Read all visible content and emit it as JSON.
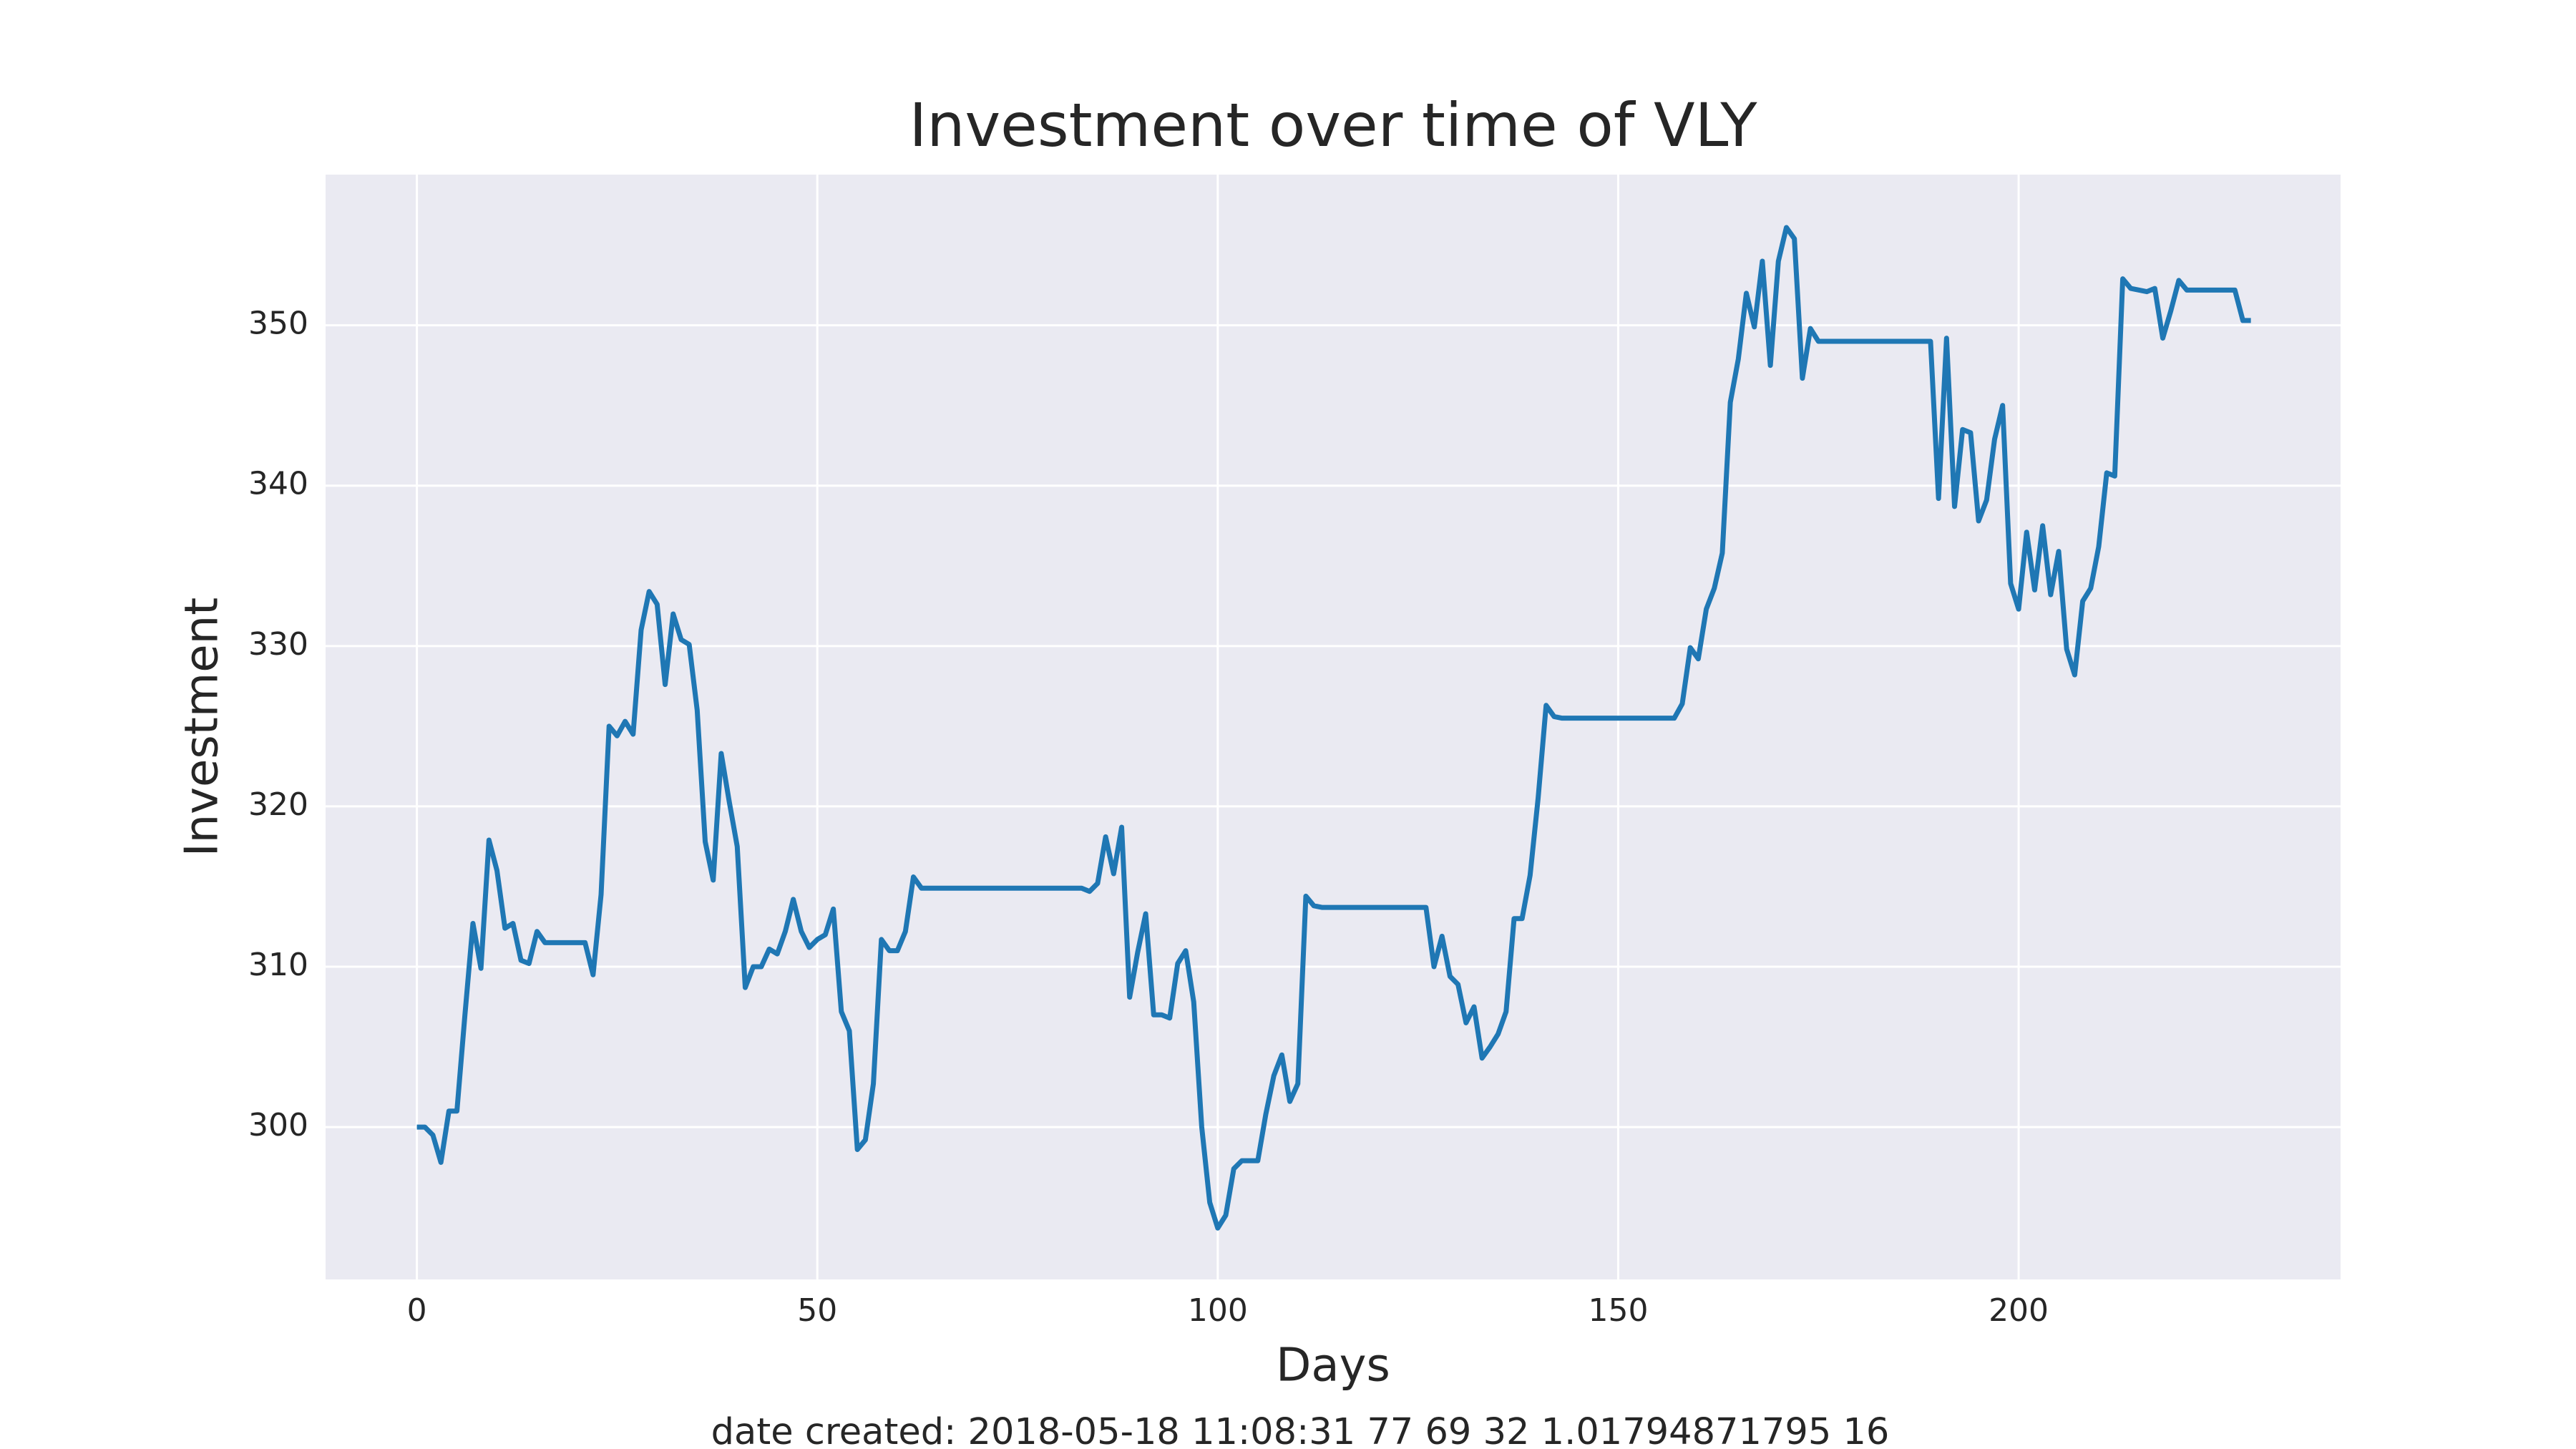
{
  "chart_data": {
    "type": "line",
    "title": "Investment over time of VLY",
    "xlabel": "Days",
    "ylabel": "Investment",
    "caption": "date created: 2018-05-18 11:08:31 77 69 32 1.01794871795 16",
    "xlim": [
      -11.4,
      240.2
    ],
    "ylim": [
      290.5,
      359.4
    ],
    "xticks": [
      0,
      50,
      100,
      150,
      200
    ],
    "yticks": [
      300,
      310,
      320,
      330,
      340,
      350
    ],
    "grid": true,
    "x": [
      0,
      1,
      2,
      3,
      4,
      5,
      6,
      7,
      8,
      9,
      10,
      11,
      12,
      13,
      14,
      15,
      16,
      17,
      18,
      19,
      20,
      21,
      22,
      23,
      24,
      25,
      26,
      27,
      28,
      29,
      30,
      31,
      32,
      33,
      34,
      35,
      36,
      37,
      38,
      39,
      40,
      41,
      42,
      43,
      44,
      45,
      46,
      47,
      48,
      49,
      50,
      51,
      52,
      53,
      54,
      55,
      56,
      57,
      58,
      59,
      60,
      61,
      62,
      63,
      64,
      65,
      66,
      67,
      68,
      69,
      70,
      71,
      72,
      73,
      74,
      75,
      76,
      77,
      78,
      79,
      80,
      81,
      82,
      83,
      84,
      85,
      86,
      87,
      88,
      89,
      90,
      91,
      92,
      93,
      94,
      95,
      96,
      97,
      98,
      99,
      100,
      101,
      102,
      103,
      104,
      105,
      106,
      107,
      108,
      109,
      110,
      111,
      112,
      113,
      114,
      115,
      116,
      117,
      118,
      119,
      120,
      121,
      122,
      123,
      124,
      125,
      126,
      127,
      128,
      129,
      130,
      131,
      132,
      133,
      134,
      135,
      136,
      137,
      138,
      139,
      140,
      141,
      142,
      143,
      144,
      145,
      146,
      147,
      148,
      149,
      150,
      151,
      152,
      153,
      154,
      155,
      156,
      157,
      158,
      159,
      160,
      161,
      162,
      163,
      164,
      165,
      166,
      167,
      168,
      169,
      170,
      171,
      172,
      173,
      174,
      175,
      176,
      177,
      178,
      179,
      180,
      181,
      182,
      183,
      184,
      185,
      186,
      187,
      188,
      189,
      190,
      191,
      192,
      193,
      194,
      195,
      196,
      197,
      198,
      199,
      200,
      201,
      202,
      203,
      204,
      205,
      206,
      207,
      208,
      209,
      210,
      211,
      212,
      213,
      214,
      215,
      216,
      217,
      218,
      219,
      220,
      221,
      222,
      223,
      224,
      225,
      226,
      227,
      228,
      229
    ],
    "series": [
      {
        "name": "Investment",
        "color": "#1f77b4",
        "values": [
          300,
          300,
          299.5,
          297.8,
          301,
          301,
          307,
          312.7,
          309.9,
          317.9,
          316,
          312.4,
          312.7,
          310.4,
          310.2,
          312.2,
          311.5,
          311.5,
          311.5,
          311.5,
          311.5,
          311.5,
          309.5,
          314.5,
          325,
          324.4,
          325.3,
          324.5,
          331,
          333.4,
          332.6,
          327.6,
          332,
          330.4,
          330.1,
          326,
          317.8,
          315.4,
          323.3,
          320.3,
          317.5,
          308.7,
          310,
          310,
          311.1,
          310.8,
          312.2,
          314.2,
          312.2,
          311.2,
          311.7,
          312,
          313.6,
          307.2,
          306,
          298.6,
          299.2,
          302.7,
          311.7,
          311,
          311,
          312.2,
          315.6,
          314.9,
          314.9,
          314.9,
          314.9,
          314.9,
          314.9,
          314.9,
          314.9,
          314.9,
          314.9,
          314.9,
          314.9,
          314.9,
          314.9,
          314.9,
          314.9,
          314.9,
          314.9,
          314.9,
          314.9,
          314.9,
          314.7,
          315.2,
          318.1,
          315.8,
          318.7,
          308.1,
          310.9,
          313.3,
          307,
          307,
          306.8,
          310.2,
          311,
          307.8,
          300,
          295.3,
          293.7,
          294.5,
          297.4,
          297.9,
          297.9,
          297.9,
          300.8,
          303.2,
          304.5,
          301.6,
          302.7,
          314.4,
          313.8,
          313.7,
          313.7,
          313.7,
          313.7,
          313.7,
          313.7,
          313.7,
          313.7,
          313.7,
          313.7,
          313.7,
          313.7,
          313.7,
          313.7,
          310,
          311.9,
          309.4,
          308.9,
          306.5,
          307.5,
          304.3,
          305,
          305.8,
          307.2,
          313,
          313,
          315.7,
          320.5,
          326.3,
          325.6,
          325.5,
          325.5,
          325.5,
          325.5,
          325.5,
          325.5,
          325.5,
          325.5,
          325.5,
          325.5,
          325.5,
          325.5,
          325.5,
          325.5,
          325.5,
          326.4,
          329.9,
          329.2,
          332.3,
          333.6,
          335.8,
          345.2,
          347.9,
          352,
          349.9,
          354,
          347.5,
          354,
          356.1,
          355.4,
          346.7,
          349.8,
          349,
          349,
          349,
          349,
          349,
          349,
          349,
          349,
          349,
          349,
          349,
          349,
          349,
          349,
          349,
          339.2,
          349.2,
          338.7,
          343.5,
          343.3,
          337.8,
          339.1,
          342.9,
          345,
          333.9,
          332.3,
          337.1,
          333.5,
          337.5,
          333.2,
          335.9,
          329.8,
          328.2,
          332.8,
          333.6,
          336.2,
          340.8,
          340.6,
          352.9,
          352.3,
          352.2,
          352.1,
          352.3,
          349.2,
          350.9,
          352.8,
          352.2,
          352.2,
          352.2,
          352.2,
          352.2,
          352.2,
          352.2,
          350.3,
          350.3
        ]
      }
    ]
  }
}
